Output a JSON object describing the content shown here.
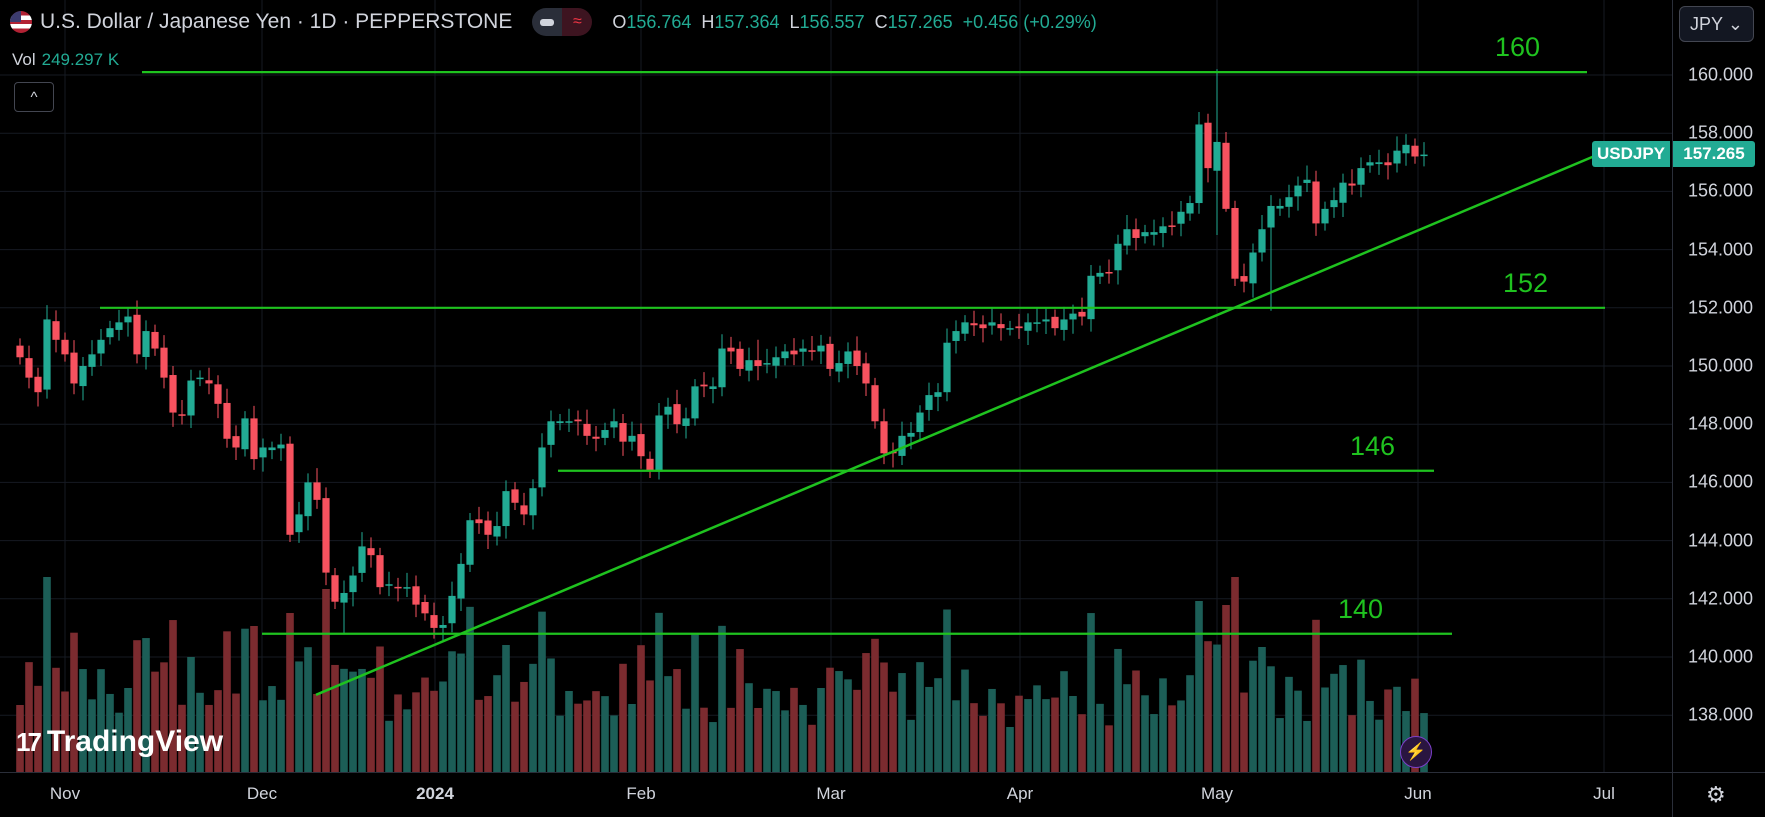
{
  "header": {
    "title": "U.S. Dollar / Japanese Yen · 1D · PEPPERSTONE",
    "ohlc": {
      "o_label": "O",
      "o": "156.764",
      "h_label": "H",
      "h": "157.364",
      "l_label": "L",
      "l": "156.557",
      "c_label": "C",
      "c": "157.265",
      "change": "+0.456 (+0.29%)"
    },
    "vol_label": "Vol",
    "vol_value": "249.297 K",
    "collapse_icon": "chevron-up-icon"
  },
  "currency_selector": "JPY",
  "last_price_tag": {
    "symbol": "USDJPY",
    "price": "157.265"
  },
  "logo": "TradingView",
  "colors": {
    "up": "#22ab94",
    "down": "#f7525f",
    "up_vol": "#1c5e57",
    "down_vol": "#7b2b2f",
    "level_line": "#1fc21f"
  },
  "chart_data": {
    "type": "candlestick",
    "title": "U.S. Dollar / Japanese Yen · 1D · PEPPERSTONE",
    "ylim": [
      136.5,
      162.5
    ],
    "price_ticks": [
      "160.000",
      "158.000",
      "156.000",
      "154.000",
      "152.000",
      "150.000",
      "148.000",
      "146.000",
      "144.000",
      "142.000",
      "140.000",
      "138.000"
    ],
    "time_ticks": [
      {
        "label": "Nov",
        "bold": false
      },
      {
        "label": "Dec",
        "bold": false
      },
      {
        "label": "2024",
        "bold": true
      },
      {
        "label": "Feb",
        "bold": false
      },
      {
        "label": "Mar",
        "bold": false
      },
      {
        "label": "Apr",
        "bold": false
      },
      {
        "label": "May",
        "bold": false
      },
      {
        "label": "Jun",
        "bold": false
      },
      {
        "label": "Jul",
        "bold": false
      }
    ],
    "closes": [
      150.3,
      149.6,
      149.1,
      151.6,
      150.9,
      150.4,
      149.4,
      150.0,
      150.4,
      150.9,
      151.3,
      151.5,
      151.7,
      150.4,
      151.2,
      150.6,
      149.6,
      148.4,
      148.3,
      149.5,
      149.6,
      149.4,
      148.7,
      147.5,
      147.2,
      148.2,
      146.8,
      147.2,
      147.2,
      147.3,
      144.2,
      144.9,
      146.0,
      145.4,
      142.9,
      141.9,
      142.2,
      142.8,
      143.8,
      143.5,
      142.4,
      142.5,
      142.4,
      142.4,
      141.8,
      141.5,
      141.0,
      141.1,
      142.1,
      143.2,
      144.7,
      144.6,
      144.2,
      144.5,
      145.7,
      145.3,
      144.9,
      145.8,
      147.2,
      148.1,
      148.1,
      148.1,
      148.1,
      147.6,
      147.5,
      147.8,
      148.1,
      147.4,
      147.6,
      146.9,
      146.4,
      148.3,
      148.6,
      148.0,
      148.2,
      149.3,
      149.3,
      149.3,
      150.6,
      150.5,
      149.9,
      150.2,
      150.0,
      150.1,
      150.3,
      150.5,
      150.4,
      150.6,
      150.5,
      150.7,
      149.9,
      150.1,
      150.5,
      150.0,
      149.4,
      148.1,
      147.0,
      147.0,
      147.6,
      147.7,
      148.4,
      149.0,
      149.1,
      150.8,
      151.2,
      151.5,
      151.4,
      151.3,
      151.5,
      151.3,
      151.3,
      151.3,
      151.5,
      151.5,
      151.6,
      151.3,
      151.6,
      151.8,
      151.7,
      153.1,
      153.2,
      153.2,
      154.2,
      154.7,
      154.4,
      154.6,
      154.6,
      154.8,
      154.8,
      155.3,
      155.6,
      158.3,
      156.8,
      157.7,
      155.4,
      153.0,
      152.9,
      153.9,
      154.7,
      155.5,
      155.5,
      155.8,
      156.2,
      156.4,
      154.9,
      155.4,
      155.7,
      156.3,
      156.2,
      156.8,
      157.0,
      157.0,
      156.9,
      157.4,
      157.6,
      157.2,
      157.265
    ],
    "high_overrides": {
      "133": 160.2,
      "82": 150.9,
      "28": 147.4
    },
    "low_overrides": {
      "133": 154.5,
      "36": 140.8,
      "134": 155.3,
      "139": 151.9,
      "71": 146.1
    },
    "horizontal_levels": [
      {
        "price": 160.1,
        "label": "160"
      },
      {
        "price": 152.0,
        "label": "152"
      },
      {
        "price": 146.4,
        "label": "146"
      },
      {
        "price": 140.8,
        "label": "140"
      }
    ],
    "trendline": {
      "from_price": 138.7,
      "to_price": 157.6
    }
  }
}
